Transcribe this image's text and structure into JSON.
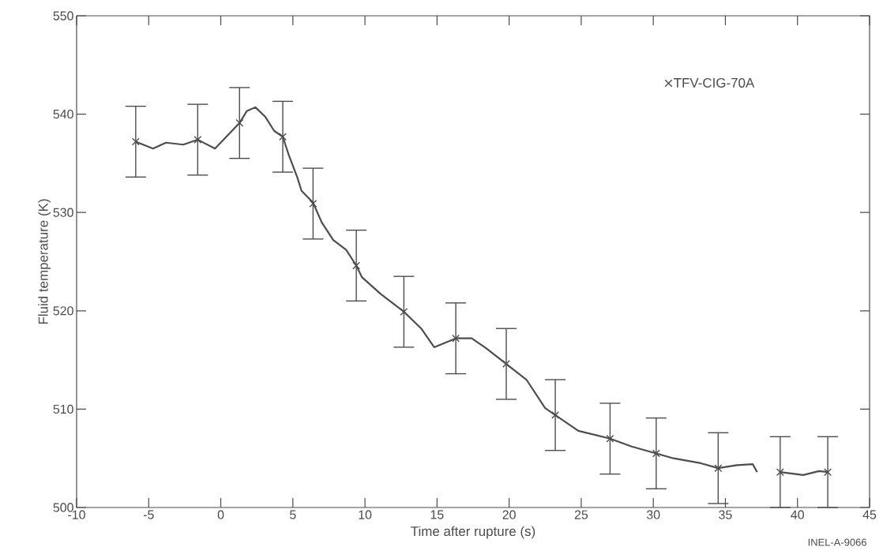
{
  "chart_data": {
    "type": "line",
    "xlabel": "Time after rupture (s)",
    "ylabel": "Fluid temperature (K)",
    "xlim": [
      -10,
      45
    ],
    "ylim": [
      500,
      550
    ],
    "xticks": [
      -10,
      -5,
      0,
      5,
      10,
      15,
      20,
      25,
      30,
      35,
      40,
      45
    ],
    "yticks": [
      500,
      510,
      520,
      530,
      540,
      550
    ],
    "legend": "top right",
    "annotations": [
      "INEL-A-9066"
    ],
    "series": [
      {
        "color": "#4d4d4d",
        "x": [
          -5.9,
          -4.7,
          -3.8,
          -2.6,
          -1.6,
          -0.4,
          1.3,
          1.8,
          2.4,
          3.1,
          3.7,
          4.3,
          4.7,
          5.3,
          5.6,
          6.4,
          7.0,
          7.8,
          8.7,
          9.4,
          9.8,
          11.1,
          12.7,
          13.9,
          14.8,
          16.3,
          17.4,
          18.4,
          19.8,
          21.2,
          22.5,
          23.2,
          24.8,
          27.0,
          28.5,
          30.2,
          31.4,
          33.3,
          34.5,
          35.8,
          36.9,
          37.2,
          38.0,
          38.8,
          40.4,
          41.5,
          42.1
        ],
        "values": [
          537.2,
          536.5,
          537.1,
          536.9,
          537.4,
          536.5,
          539.1,
          540.3,
          540.7,
          539.7,
          538.3,
          537.7,
          535.9,
          533.6,
          532.2,
          531.0,
          529.0,
          527.2,
          526.2,
          524.6,
          523.4,
          521.7,
          519.9,
          518.2,
          516.3,
          517.2,
          517.2,
          516.2,
          514.6,
          513.0,
          510.1,
          509.4,
          507.8,
          507.0,
          506.2,
          505.5,
          505.0,
          504.5,
          504.0,
          504.3,
          504.4,
          503.6,
          null,
          503.6,
          503.3,
          503.7,
          503.6
        ]
      },
      {
        "type": "scatter",
        "name": "TFV-CIG-70A",
        "color": "#4d4d4d",
        "marker": "cross",
        "x": [
          -5.9,
          -1.6,
          1.3,
          4.3,
          6.4,
          9.4,
          12.7,
          16.3,
          19.8,
          23.2,
          27.0,
          30.2,
          34.5,
          38.8,
          42.1
        ],
        "values": [
          537.2,
          537.4,
          539.1,
          537.7,
          530.9,
          524.6,
          519.9,
          517.2,
          514.6,
          509.4,
          507.0,
          505.5,
          504.0,
          503.6,
          503.6
        ],
        "errors": [
          3.6,
          3.6,
          3.6,
          3.6,
          3.6,
          3.6,
          3.6,
          3.6,
          3.6,
          3.6,
          3.6,
          3.6,
          3.6,
          3.6,
          3.6
        ]
      }
    ]
  }
}
